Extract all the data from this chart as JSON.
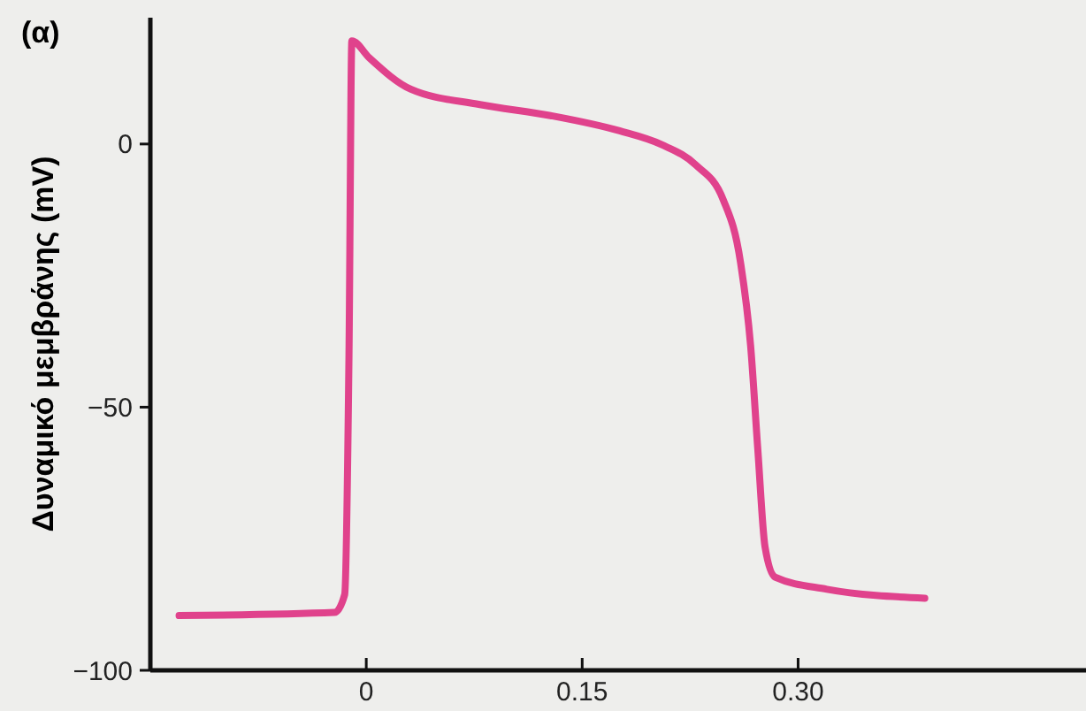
{
  "chart_data": {
    "type": "line",
    "title": "(α)",
    "ylabel": "Δυναμικό μεμβράνης (mV)",
    "xlim": [
      -0.15,
      0.5
    ],
    "xticks": [
      0,
      0.15,
      {
        "value": 0.3,
        "label": "0.30"
      }
    ],
    "ylim": [
      -100,
      24
    ],
    "yticks": [
      -100,
      -50,
      0
    ],
    "marker": "none",
    "line_style": "solid",
    "series": [
      {
        "color": "#e0428c",
        "x": [
          -0.13,
          -0.022,
          -0.015,
          -0.012,
          -0.01,
          0.002,
          0.031,
          0.079,
          0.128,
          0.176,
          0.205,
          0.229,
          0.248,
          0.26,
          0.267,
          0.272,
          0.277,
          0.284,
          0.32,
          0.388
        ],
        "values": [
          -89.6,
          -89,
          -85.6,
          -40,
          19.6,
          16.4,
          10.4,
          7.5,
          5.4,
          2.5,
          -0.1,
          -4,
          -10.6,
          -22.5,
          -38.3,
          -58,
          -76.5,
          -82.3,
          -84.6,
          -86.3
        ]
      }
    ]
  }
}
